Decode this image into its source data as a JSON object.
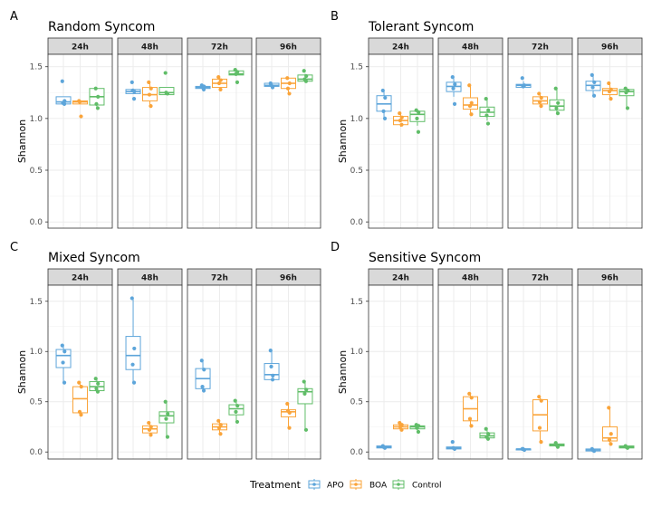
{
  "colors": {
    "APO": "#5DA5DA",
    "BOA": "#FAA43A",
    "Control": "#60BD68"
  },
  "legend": {
    "title": "Treatment",
    "items": [
      "APO",
      "BOA",
      "Control"
    ]
  },
  "chart_data": [
    {
      "type": "box",
      "tag": "A",
      "title": "Random Syncom",
      "ylabel": "Shannon",
      "ylim": [
        -0.06,
        1.62
      ],
      "yticks": [
        "0.0",
        "0.5",
        "1.0",
        "1.5"
      ],
      "facets": [
        {
          "label": "24h",
          "groups": [
            {
              "treatment": "APO",
              "q1": 1.14,
              "median": 1.16,
              "q3": 1.21,
              "lower": 1.13,
              "upper": 1.21,
              "points": [
                1.36,
                1.14,
                1.15,
                1.17
              ]
            },
            {
              "treatment": "BOA",
              "q1": 1.14,
              "median": 1.16,
              "q3": 1.17,
              "lower": 1.14,
              "upper": 1.17,
              "points": [
                1.17,
                1.02,
                1.16
              ]
            },
            {
              "treatment": "Control",
              "q1": 1.13,
              "median": 1.21,
              "q3": 1.29,
              "lower": 1.1,
              "upper": 1.29,
              "points": [
                1.29,
                1.1,
                1.14,
                1.21
              ]
            }
          ]
        },
        {
          "label": "48h",
          "groups": [
            {
              "treatment": "APO",
              "q1": 1.24,
              "median": 1.26,
              "q3": 1.28,
              "lower": 1.24,
              "upper": 1.29,
              "points": [
                1.35,
                1.19,
                1.27,
                1.26
              ]
            },
            {
              "treatment": "BOA",
              "q1": 1.17,
              "median": 1.23,
              "q3": 1.3,
              "lower": 1.12,
              "upper": 1.35,
              "points": [
                1.35,
                1.12,
                1.23,
                1.29
              ]
            },
            {
              "treatment": "Control",
              "q1": 1.23,
              "median": 1.25,
              "q3": 1.3,
              "lower": 1.23,
              "upper": 1.3,
              "points": [
                1.44,
                1.24,
                1.25
              ]
            }
          ]
        },
        {
          "label": "72h",
          "groups": [
            {
              "treatment": "APO",
              "q1": 1.29,
              "median": 1.3,
              "q3": 1.31,
              "lower": 1.28,
              "upper": 1.33,
              "points": [
                1.32,
                1.28,
                1.3,
                1.31
              ]
            },
            {
              "treatment": "BOA",
              "q1": 1.3,
              "median": 1.34,
              "q3": 1.38,
              "lower": 1.28,
              "upper": 1.4,
              "points": [
                1.4,
                1.28,
                1.34,
                1.37
              ]
            },
            {
              "treatment": "Control",
              "q1": 1.42,
              "median": 1.43,
              "q3": 1.46,
              "lower": 1.41,
              "upper": 1.47,
              "points": [
                1.47,
                1.35,
                1.43,
                1.45
              ]
            }
          ]
        },
        {
          "label": "96h",
          "groups": [
            {
              "treatment": "APO",
              "q1": 1.31,
              "median": 1.32,
              "q3": 1.34,
              "lower": 1.29,
              "upper": 1.35,
              "points": [
                1.34,
                1.3,
                1.32
              ]
            },
            {
              "treatment": "BOA",
              "q1": 1.29,
              "median": 1.34,
              "q3": 1.39,
              "lower": 1.24,
              "upper": 1.39,
              "points": [
                1.39,
                1.24,
                1.29,
                1.34
              ]
            },
            {
              "treatment": "Control",
              "q1": 1.36,
              "median": 1.38,
              "q3": 1.42,
              "lower": 1.35,
              "upper": 1.43,
              "points": [
                1.46,
                1.36,
                1.38,
                1.41
              ]
            }
          ]
        }
      ]
    },
    {
      "type": "box",
      "tag": "B",
      "title": "Tolerant Syncom",
      "ylabel": "Shannon",
      "ylim": [
        -0.06,
        1.62
      ],
      "yticks": [
        "0.0",
        "0.5",
        "1.0",
        "1.5"
      ],
      "facets": [
        {
          "label": "24h",
          "groups": [
            {
              "treatment": "APO",
              "q1": 1.07,
              "median": 1.14,
              "q3": 1.22,
              "lower": 1.0,
              "upper": 1.27,
              "points": [
                1.27,
                1.0,
                1.07,
                1.2
              ]
            },
            {
              "treatment": "BOA",
              "q1": 0.94,
              "median": 0.98,
              "q3": 1.02,
              "lower": 0.92,
              "upper": 1.05,
              "points": [
                1.05,
                0.94,
                0.98,
                1.01
              ]
            },
            {
              "treatment": "Control",
              "q1": 0.97,
              "median": 1.04,
              "q3": 1.07,
              "lower": 0.93,
              "upper": 1.08,
              "points": [
                1.08,
                0.87,
                1.0,
                1.06
              ]
            }
          ]
        },
        {
          "label": "48h",
          "groups": [
            {
              "treatment": "APO",
              "q1": 1.26,
              "median": 1.31,
              "q3": 1.35,
              "lower": 1.21,
              "upper": 1.39,
              "points": [
                1.4,
                1.14,
                1.29,
                1.33
              ]
            },
            {
              "treatment": "BOA",
              "q1": 1.09,
              "median": 1.13,
              "q3": 1.2,
              "lower": 1.04,
              "upper": 1.32,
              "points": [
                1.32,
                1.04,
                1.12,
                1.15
              ]
            },
            {
              "treatment": "Control",
              "q1": 1.02,
              "median": 1.06,
              "q3": 1.11,
              "lower": 0.98,
              "upper": 1.2,
              "points": [
                1.19,
                0.95,
                1.03,
                1.08
              ]
            }
          ]
        },
        {
          "label": "72h",
          "groups": [
            {
              "treatment": "APO",
              "q1": 1.3,
              "median": 1.32,
              "q3": 1.33,
              "lower": 1.29,
              "upper": 1.36,
              "points": [
                1.39,
                1.32,
                1.31
              ]
            },
            {
              "treatment": "BOA",
              "q1": 1.14,
              "median": 1.17,
              "q3": 1.21,
              "lower": 1.12,
              "upper": 1.24,
              "points": [
                1.24,
                1.12,
                1.16,
                1.2
              ]
            },
            {
              "treatment": "Control",
              "q1": 1.08,
              "median": 1.12,
              "q3": 1.18,
              "lower": 1.06,
              "upper": 1.29,
              "points": [
                1.29,
                1.05,
                1.1,
                1.15
              ]
            }
          ]
        },
        {
          "label": "96h",
          "groups": [
            {
              "treatment": "APO",
              "q1": 1.27,
              "median": 1.32,
              "q3": 1.36,
              "lower": 1.23,
              "upper": 1.42,
              "points": [
                1.42,
                1.22,
                1.3,
                1.35
              ]
            },
            {
              "treatment": "BOA",
              "q1": 1.23,
              "median": 1.27,
              "q3": 1.29,
              "lower": 1.19,
              "upper": 1.34,
              "points": [
                1.34,
                1.19,
                1.26,
                1.28
              ]
            },
            {
              "treatment": "Control",
              "q1": 1.22,
              "median": 1.26,
              "q3": 1.28,
              "lower": 1.1,
              "upper": 1.29,
              "points": [
                1.29,
                1.1,
                1.25,
                1.27
              ]
            }
          ]
        }
      ]
    },
    {
      "type": "box",
      "tag": "C",
      "title": "Mixed Syncom",
      "ylabel": "Shannon",
      "ylim": [
        -0.07,
        1.66
      ],
      "yticks": [
        "0.0",
        "0.5",
        "1.0",
        "1.5"
      ],
      "facets": [
        {
          "label": "24h",
          "groups": [
            {
              "treatment": "APO",
              "q1": 0.84,
              "median": 0.96,
              "q3": 1.02,
              "lower": 0.7,
              "upper": 1.06,
              "points": [
                1.06,
                0.69,
                0.89,
                1.0
              ]
            },
            {
              "treatment": "BOA",
              "q1": 0.39,
              "median": 0.53,
              "q3": 0.65,
              "lower": 0.37,
              "upper": 0.69,
              "points": [
                0.69,
                0.37,
                0.4,
                0.65
              ]
            },
            {
              "treatment": "Control",
              "q1": 0.61,
              "median": 0.65,
              "q3": 0.7,
              "lower": 0.6,
              "upper": 0.73,
              "points": [
                0.73,
                0.6,
                0.63,
                0.68
              ]
            }
          ]
        },
        {
          "label": "48h",
          "groups": [
            {
              "treatment": "APO",
              "q1": 0.82,
              "median": 0.96,
              "q3": 1.15,
              "lower": 0.69,
              "upper": 1.53,
              "points": [
                1.53,
                0.69,
                0.87,
                1.03
              ]
            },
            {
              "treatment": "BOA",
              "q1": 0.19,
              "median": 0.23,
              "q3": 0.26,
              "lower": 0.17,
              "upper": 0.29,
              "points": [
                0.29,
                0.17,
                0.22,
                0.25
              ]
            },
            {
              "treatment": "Control",
              "q1": 0.29,
              "median": 0.36,
              "q3": 0.4,
              "lower": 0.15,
              "upper": 0.5,
              "points": [
                0.5,
                0.15,
                0.33,
                0.38
              ]
            }
          ]
        },
        {
          "label": "72h",
          "groups": [
            {
              "treatment": "APO",
              "q1": 0.63,
              "median": 0.73,
              "q3": 0.83,
              "lower": 0.61,
              "upper": 0.91,
              "points": [
                0.91,
                0.61,
                0.65,
                0.82
              ]
            },
            {
              "treatment": "BOA",
              "q1": 0.22,
              "median": 0.25,
              "q3": 0.28,
              "lower": 0.18,
              "upper": 0.31,
              "points": [
                0.31,
                0.18,
                0.24,
                0.27
              ]
            },
            {
              "treatment": "Control",
              "q1": 0.37,
              "median": 0.43,
              "q3": 0.47,
              "lower": 0.3,
              "upper": 0.51,
              "points": [
                0.51,
                0.3,
                0.4,
                0.46
              ]
            }
          ]
        },
        {
          "label": "96h",
          "groups": [
            {
              "treatment": "APO",
              "q1": 0.72,
              "median": 0.77,
              "q3": 0.88,
              "lower": 0.71,
              "upper": 1.01,
              "points": [
                1.01,
                0.72,
                0.85,
                0.76
              ]
            },
            {
              "treatment": "BOA",
              "q1": 0.35,
              "median": 0.4,
              "q3": 0.42,
              "lower": 0.24,
              "upper": 0.48,
              "points": [
                0.48,
                0.24,
                0.41,
                0.39
              ]
            },
            {
              "treatment": "Control",
              "q1": 0.48,
              "median": 0.6,
              "q3": 0.63,
              "lower": 0.22,
              "upper": 0.7,
              "points": [
                0.7,
                0.22,
                0.58,
                0.62
              ]
            }
          ]
        }
      ]
    },
    {
      "type": "box",
      "tag": "D",
      "title": "Sensitive Syncom",
      "ylabel": "Shannon",
      "ylim": [
        -0.07,
        1.66
      ],
      "yticks": [
        "0.0",
        "0.5",
        "1.0",
        "1.5"
      ],
      "facets": [
        {
          "label": "24h",
          "groups": [
            {
              "treatment": "APO",
              "q1": 0.04,
              "median": 0.05,
              "q3": 0.06,
              "lower": 0.03,
              "upper": 0.06,
              "points": [
                0.06,
                0.04,
                0.05
              ]
            },
            {
              "treatment": "BOA",
              "q1": 0.23,
              "median": 0.25,
              "q3": 0.27,
              "lower": 0.22,
              "upper": 0.29,
              "points": [
                0.29,
                0.22,
                0.25,
                0.27
              ]
            },
            {
              "treatment": "Control",
              "q1": 0.23,
              "median": 0.25,
              "q3": 0.26,
              "lower": 0.2,
              "upper": 0.27,
              "points": [
                0.27,
                0.2,
                0.24,
                0.26
              ]
            }
          ]
        },
        {
          "label": "48h",
          "groups": [
            {
              "treatment": "APO",
              "q1": 0.03,
              "median": 0.04,
              "q3": 0.05,
              "lower": 0.03,
              "upper": 0.05,
              "points": [
                0.1,
                0.03,
                0.04
              ]
            },
            {
              "treatment": "BOA",
              "q1": 0.31,
              "median": 0.43,
              "q3": 0.55,
              "lower": 0.27,
              "upper": 0.58,
              "points": [
                0.58,
                0.26,
                0.33,
                0.54
              ]
            },
            {
              "treatment": "Control",
              "q1": 0.14,
              "median": 0.16,
              "q3": 0.19,
              "lower": 0.13,
              "upper": 0.23,
              "points": [
                0.23,
                0.13,
                0.15,
                0.18
              ]
            }
          ]
        },
        {
          "label": "72h",
          "groups": [
            {
              "treatment": "APO",
              "q1": 0.02,
              "median": 0.03,
              "q3": 0.03,
              "lower": 0.02,
              "upper": 0.03,
              "points": [
                0.03,
                0.02,
                0.03
              ]
            },
            {
              "treatment": "BOA",
              "q1": 0.21,
              "median": 0.37,
              "q3": 0.52,
              "lower": 0.1,
              "upper": 0.56,
              "points": [
                0.55,
                0.1,
                0.24,
                0.51
              ]
            },
            {
              "treatment": "Control",
              "q1": 0.06,
              "median": 0.07,
              "q3": 0.08,
              "lower": 0.05,
              "upper": 0.09,
              "points": [
                0.09,
                0.05,
                0.07
              ]
            }
          ]
        },
        {
          "label": "96h",
          "groups": [
            {
              "treatment": "APO",
              "q1": 0.01,
              "median": 0.02,
              "q3": 0.03,
              "lower": 0.01,
              "upper": 0.03,
              "points": [
                0.03,
                0.01,
                0.02
              ]
            },
            {
              "treatment": "BOA",
              "q1": 0.11,
              "median": 0.14,
              "q3": 0.25,
              "lower": 0.08,
              "upper": 0.44,
              "points": [
                0.44,
                0.08,
                0.12,
                0.18
              ]
            },
            {
              "treatment": "Control",
              "q1": 0.04,
              "median": 0.05,
              "q3": 0.06,
              "lower": 0.04,
              "upper": 0.07,
              "points": [
                0.06,
                0.04,
                0.05
              ]
            }
          ]
        }
      ]
    }
  ]
}
